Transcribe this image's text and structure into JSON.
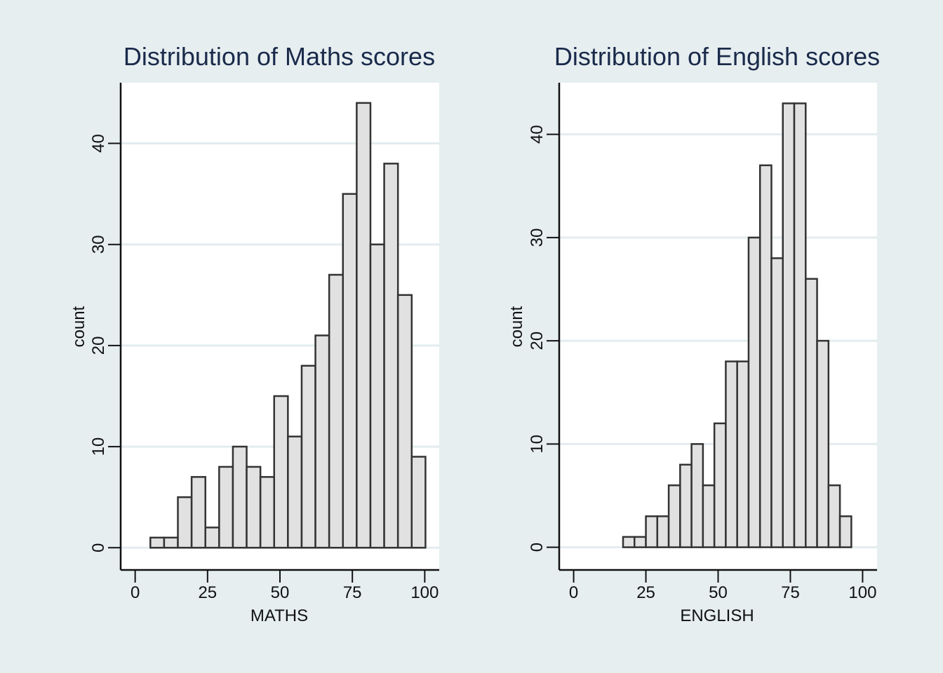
{
  "chart_data": [
    {
      "type": "bar",
      "title": "Distribution of Maths scores",
      "xlabel": "MATHS",
      "ylabel": "count",
      "xlim": [
        -5,
        105
      ],
      "ylim": [
        -2.2,
        46
      ],
      "xticks": [
        0,
        25,
        50,
        75,
        100
      ],
      "yticks": [
        0,
        10,
        20,
        30,
        40
      ],
      "grid": true,
      "bin_width": 4.75,
      "bins_start": [
        5.25,
        10.0,
        14.75,
        19.5,
        24.25,
        29.0,
        33.75,
        38.5,
        43.25,
        48.0,
        52.75,
        57.5,
        62.25,
        67.0,
        71.75,
        76.5,
        81.25,
        86.0,
        90.75,
        95.5
      ],
      "values": [
        1,
        1,
        5,
        7,
        2,
        8,
        10,
        8,
        7,
        15,
        11,
        18,
        21,
        27,
        35,
        44,
        30,
        38,
        25,
        9
      ]
    },
    {
      "type": "bar",
      "title": "Distribution of English scores",
      "xlabel": "ENGLISH",
      "ylabel": "count",
      "xlim": [
        -5,
        105
      ],
      "ylim": [
        -2.2,
        45
      ],
      "xticks": [
        0,
        25,
        50,
        75,
        100
      ],
      "yticks": [
        0,
        10,
        20,
        30,
        40
      ],
      "grid": true,
      "bin_width": 3.95,
      "bins_start": [
        17.1,
        21.05,
        25.0,
        28.95,
        32.9,
        36.85,
        40.8,
        44.75,
        48.7,
        52.65,
        56.6,
        60.55,
        64.5,
        68.45,
        72.4,
        76.35,
        80.3,
        84.25,
        88.2,
        92.15
      ],
      "values": [
        1,
        1,
        3,
        3,
        6,
        8,
        10,
        6,
        12,
        18,
        18,
        30,
        37,
        28,
        43,
        43,
        26,
        20,
        6,
        3
      ]
    }
  ]
}
